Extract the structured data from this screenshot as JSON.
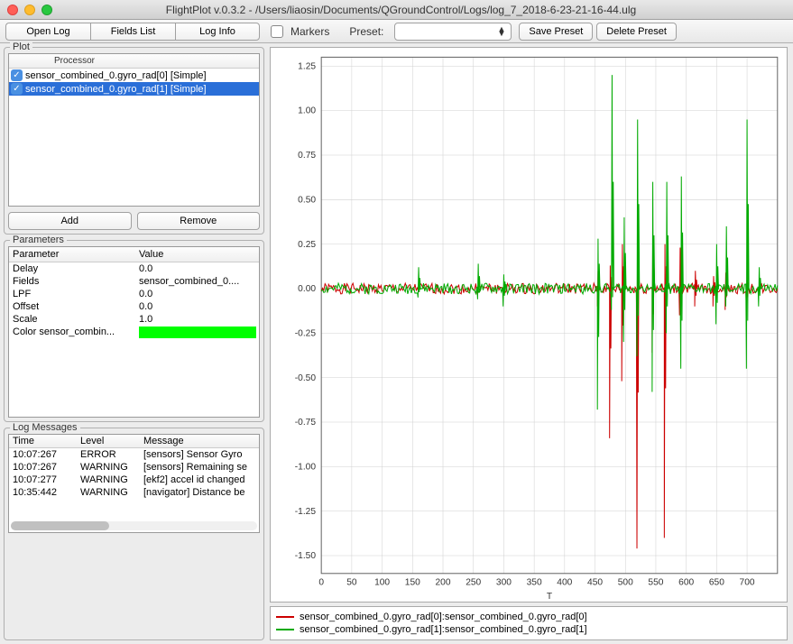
{
  "window": {
    "title": "FlightPlot v.0.3.2 - /Users/liaosin/Documents/QGroundControl/Logs/log_7_2018-6-23-21-16-44.ulg"
  },
  "toolbar": {
    "open_log": "Open Log",
    "fields_list": "Fields List",
    "log_info": "Log Info",
    "markers": "Markers",
    "preset": "Preset:",
    "save_preset": "Save Preset",
    "delete_preset": "Delete Preset"
  },
  "plot_panel": {
    "title": "Plot",
    "header": "Processor",
    "items": [
      {
        "label": "sensor_combined_0.gyro_rad[0] [Simple]",
        "checked": true,
        "selected": false
      },
      {
        "label": "sensor_combined_0.gyro_rad[1] [Simple]",
        "checked": true,
        "selected": true
      }
    ],
    "add": "Add",
    "remove": "Remove"
  },
  "parameters_panel": {
    "title": "Parameters",
    "head_param": "Parameter",
    "head_value": "Value",
    "rows": [
      {
        "p": "Delay",
        "v": "0.0"
      },
      {
        "p": "Fields",
        "v": "sensor_combined_0...."
      },
      {
        "p": "LPF",
        "v": "0.0"
      },
      {
        "p": "Offset",
        "v": "0.0"
      },
      {
        "p": "Scale",
        "v": "1.0"
      },
      {
        "p": "Color sensor_combin...",
        "v": "__COLOR__"
      }
    ],
    "color_value": "#00ff00"
  },
  "log_panel": {
    "title": "Log Messages",
    "head_time": "Time",
    "head_level": "Level",
    "head_msg": "Message",
    "rows": [
      {
        "t": "10:07:267",
        "l": "ERROR",
        "m": "[sensors] Sensor Gyro "
      },
      {
        "t": "10:07:267",
        "l": "WARNING",
        "m": "[sensors] Remaining se"
      },
      {
        "t": "10:07:277",
        "l": "WARNING",
        "m": "[ekf2] accel id changed"
      },
      {
        "t": "10:35:442",
        "l": "WARNING",
        "m": "[navigator] Distance be"
      }
    ]
  },
  "chart": {
    "type": "line",
    "xlabel": "T",
    "xlim": [
      0,
      750
    ],
    "ylim": [
      -1.6,
      1.3
    ],
    "xticks": [
      0,
      50,
      100,
      150,
      200,
      250,
      300,
      350,
      400,
      450,
      500,
      550,
      600,
      650,
      700
    ],
    "yticks": [
      -1.5,
      -1.25,
      -1.0,
      -0.75,
      -0.5,
      -0.25,
      0.0,
      0.25,
      0.5,
      0.75,
      1.0,
      1.25
    ],
    "background_color": "#ffffff",
    "grid_color": "#d0d0d0",
    "axis_color": "#666666",
    "tick_fontsize": 10,
    "series": [
      {
        "name": "sensor_combined_0.gyro_rad[0]:sensor_combined_0.gyro_rad[0]",
        "color": "#cc0000",
        "spikes": [
          {
            "x": 455,
            "lo": -0.1,
            "hi": 0.1
          },
          {
            "x": 475,
            "lo": -0.84,
            "hi": 0.13
          },
          {
            "x": 495,
            "lo": -0.52,
            "hi": 0.25
          },
          {
            "x": 520,
            "lo": -1.46,
            "hi": 0.25
          },
          {
            "x": 545,
            "lo": -0.36,
            "hi": 0.28
          },
          {
            "x": 565,
            "lo": -1.4,
            "hi": 0.25
          },
          {
            "x": 590,
            "lo": -0.15,
            "hi": 0.23
          },
          {
            "x": 615,
            "lo": -0.1,
            "hi": 0.1
          },
          {
            "x": 645,
            "lo": -0.1,
            "hi": 0.07
          },
          {
            "x": 665,
            "lo": -0.12,
            "hi": 0.09
          },
          {
            "x": 700,
            "lo": -0.12,
            "hi": 0.07
          }
        ]
      },
      {
        "name": "sensor_combined_0.gyro_rad[1]:sensor_combined_0.gyro_rad[1]",
        "color": "#00aa00",
        "spikes": [
          {
            "x": 160,
            "lo": -0.05,
            "hi": 0.12
          },
          {
            "x": 258,
            "lo": -0.06,
            "hi": 0.14
          },
          {
            "x": 300,
            "lo": -0.1,
            "hi": 0.08
          },
          {
            "x": 455,
            "lo": -0.68,
            "hi": 0.28
          },
          {
            "x": 478,
            "lo": -0.12,
            "hi": 1.2
          },
          {
            "x": 498,
            "lo": -0.3,
            "hi": 0.4
          },
          {
            "x": 520,
            "lo": -0.38,
            "hi": 0.95
          },
          {
            "x": 545,
            "lo": -0.58,
            "hi": 0.6
          },
          {
            "x": 568,
            "lo": -0.25,
            "hi": 0.6
          },
          {
            "x": 592,
            "lo": -0.45,
            "hi": 0.63
          },
          {
            "x": 650,
            "lo": -0.2,
            "hi": 0.25
          },
          {
            "x": 666,
            "lo": -0.1,
            "hi": 0.35
          },
          {
            "x": 700,
            "lo": -0.45,
            "hi": 0.95
          },
          {
            "x": 720,
            "lo": -0.1,
            "hi": 0.12
          }
        ]
      }
    ]
  }
}
